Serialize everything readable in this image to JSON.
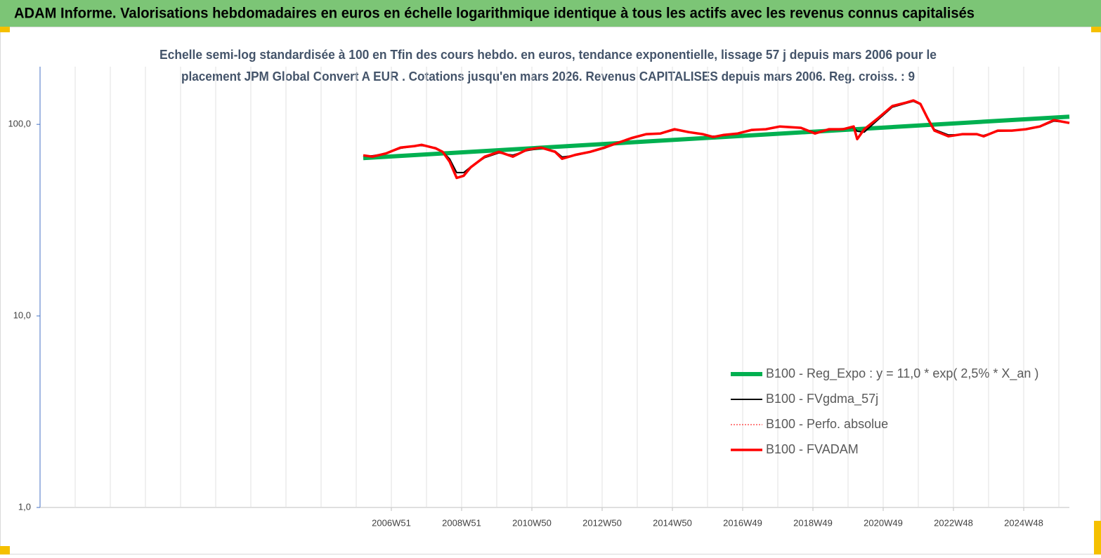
{
  "chart_data": {
    "type": "line",
    "header": "ADAM Informe. Valorisations hebdomadaires en euros en échelle logarithmique identique à tous les actifs avec les revenus connus capitalisés",
    "title": [
      "Echelle semi-log standardisée à 100 en Tfin des cours hebdo. en euros, tendance exponentielle, lissage 57 j depuis mars 2006 pour le",
      "placement JPM Global Convert A EUR . Cotations jusqu'en mars 2026. Revenus CAPITALISES depuis mars 2006. Reg. croiss. : 9"
    ],
    "log_scale_y": true,
    "ylim": [
      1,
      200
    ],
    "yticks": [
      {
        "value": 1,
        "label": "1,0"
      },
      {
        "value": 10,
        "label": "10,0"
      },
      {
        "value": 100,
        "label": "100,0"
      }
    ],
    "xlim": [
      1996.96,
      2026.26
    ],
    "xticks": [
      {
        "value": 2006.96,
        "label": "2006W51"
      },
      {
        "value": 2008.96,
        "label": "2008W51"
      },
      {
        "value": 2010.96,
        "label": "2010W50"
      },
      {
        "value": 2012.96,
        "label": "2012W50"
      },
      {
        "value": 2014.96,
        "label": "2014W50"
      },
      {
        "value": 2016.96,
        "label": "2016W49"
      },
      {
        "value": 2018.96,
        "label": "2018W49"
      },
      {
        "value": 2020.96,
        "label": "2020W49"
      },
      {
        "value": 2022.96,
        "label": "2022W48"
      },
      {
        "value": 2024.96,
        "label": "2024W48"
      }
    ],
    "xgrid": [
      1997.96,
      1998.96,
      1999.96,
      2000.96,
      2001.96,
      2002.96,
      2003.96,
      2004.96,
      2005.96,
      2006.96,
      2007.96,
      2008.96,
      2009.96,
      2010.96,
      2011.96,
      2012.96,
      2013.96,
      2014.96,
      2015.96,
      2016.96,
      2017.96,
      2018.96,
      2019.96,
      2020.96,
      2021.96,
      2022.96,
      2023.96,
      2024.96,
      2025.96
    ],
    "grid": true,
    "legend_position": "center-right",
    "series": [
      {
        "name": "B100 - Reg_Expo : y = 11,0 * exp( 2,5% *  X_an )",
        "color": "#00b050",
        "width": 6,
        "x": [
          2006.16,
          2026.26
        ],
        "values": [
          66.6,
          109.7
        ]
      },
      {
        "name": "B100 - FVgdma_57j",
        "color": "#000000",
        "width": 2,
        "x": [
          2006.16,
          2006.42,
          2006.82,
          2007.22,
          2007.62,
          2007.82,
          2008.22,
          2008.42,
          2008.62,
          2008.82,
          2009.02,
          2009.22,
          2009.62,
          2010.02,
          2010.42,
          2010.82,
          2011.22,
          2011.62,
          2011.82,
          2012.22,
          2012.62,
          2013.02,
          2013.42,
          2013.82,
          2014.22,
          2014.62,
          2015.02,
          2015.42,
          2015.82,
          2016.12,
          2016.42,
          2016.82,
          2017.22,
          2017.62,
          2018.02,
          2018.62,
          2019.02,
          2019.42,
          2019.82,
          2020.12,
          2020.22,
          2020.42,
          2020.82,
          2021.22,
          2021.62,
          2021.82,
          2022.02,
          2022.22,
          2022.42,
          2022.82,
          2023.22,
          2023.62,
          2023.82,
          2024.22,
          2024.62,
          2025.02,
          2025.42,
          2025.82,
          2026.26
        ],
        "values": [
          68.5,
          68.5,
          70.5,
          75,
          77,
          77.5,
          75.5,
          72,
          66,
          56,
          56,
          60,
          67,
          71,
          69,
          73,
          75,
          72.5,
          67.5,
          69,
          71.5,
          75,
          80,
          84.5,
          88.5,
          89.5,
          93.5,
          91.5,
          89,
          86.5,
          87.5,
          89.5,
          93,
          94,
          97,
          96,
          90.5,
          93.5,
          94,
          96.5,
          92,
          91,
          106,
          123,
          129,
          132,
          127,
          108,
          94,
          88,
          88.5,
          88.5,
          87.5,
          92,
          92.5,
          94,
          97,
          104,
          102
        ]
      },
      {
        "name": "B100 - Perfo. absolue",
        "color": "#ff0000",
        "width": 1,
        "dash": true
      },
      {
        "name": "B100 - FVADAM",
        "color": "#ff0000",
        "width": 3.5,
        "x": [
          2006.16,
          2006.42,
          2006.82,
          2007.22,
          2007.62,
          2007.82,
          2008.22,
          2008.42,
          2008.62,
          2008.82,
          2009.02,
          2009.22,
          2009.62,
          2010.02,
          2010.42,
          2010.82,
          2011.22,
          2011.62,
          2011.82,
          2012.22,
          2012.62,
          2013.02,
          2013.42,
          2013.82,
          2014.22,
          2014.62,
          2015.02,
          2015.42,
          2015.82,
          2016.12,
          2016.42,
          2016.82,
          2017.22,
          2017.62,
          2018.02,
          2018.62,
          2019.02,
          2019.42,
          2019.82,
          2020.12,
          2020.22,
          2020.42,
          2020.82,
          2021.22,
          2021.62,
          2021.82,
          2022.02,
          2022.22,
          2022.42,
          2022.82,
          2023.22,
          2023.62,
          2023.82,
          2024.22,
          2024.62,
          2025.02,
          2025.42,
          2025.82,
          2026.26
        ],
        "values": [
          68.9,
          67.8,
          70.6,
          75.6,
          77,
          78.2,
          75,
          71.9,
          63.8,
          52.5,
          53.9,
          59.7,
          67.8,
          71.9,
          67.8,
          73.8,
          75.6,
          71.9,
          66.1,
          69.5,
          71.9,
          75.6,
          80.2,
          85.1,
          88.9,
          89.6,
          94.3,
          91.1,
          88.9,
          85.9,
          88.1,
          89.6,
          93.5,
          94.3,
          97.5,
          95.9,
          89.6,
          94.3,
          94.3,
          97.5,
          83.7,
          94.3,
          107.9,
          124.6,
          130,
          133.3,
          127.8,
          107.9,
          92.7,
          86.6,
          88.9,
          88.9,
          86.6,
          92.7,
          92.7,
          94.3,
          97.5,
          105.2,
          101.7
        ]
      }
    ]
  }
}
